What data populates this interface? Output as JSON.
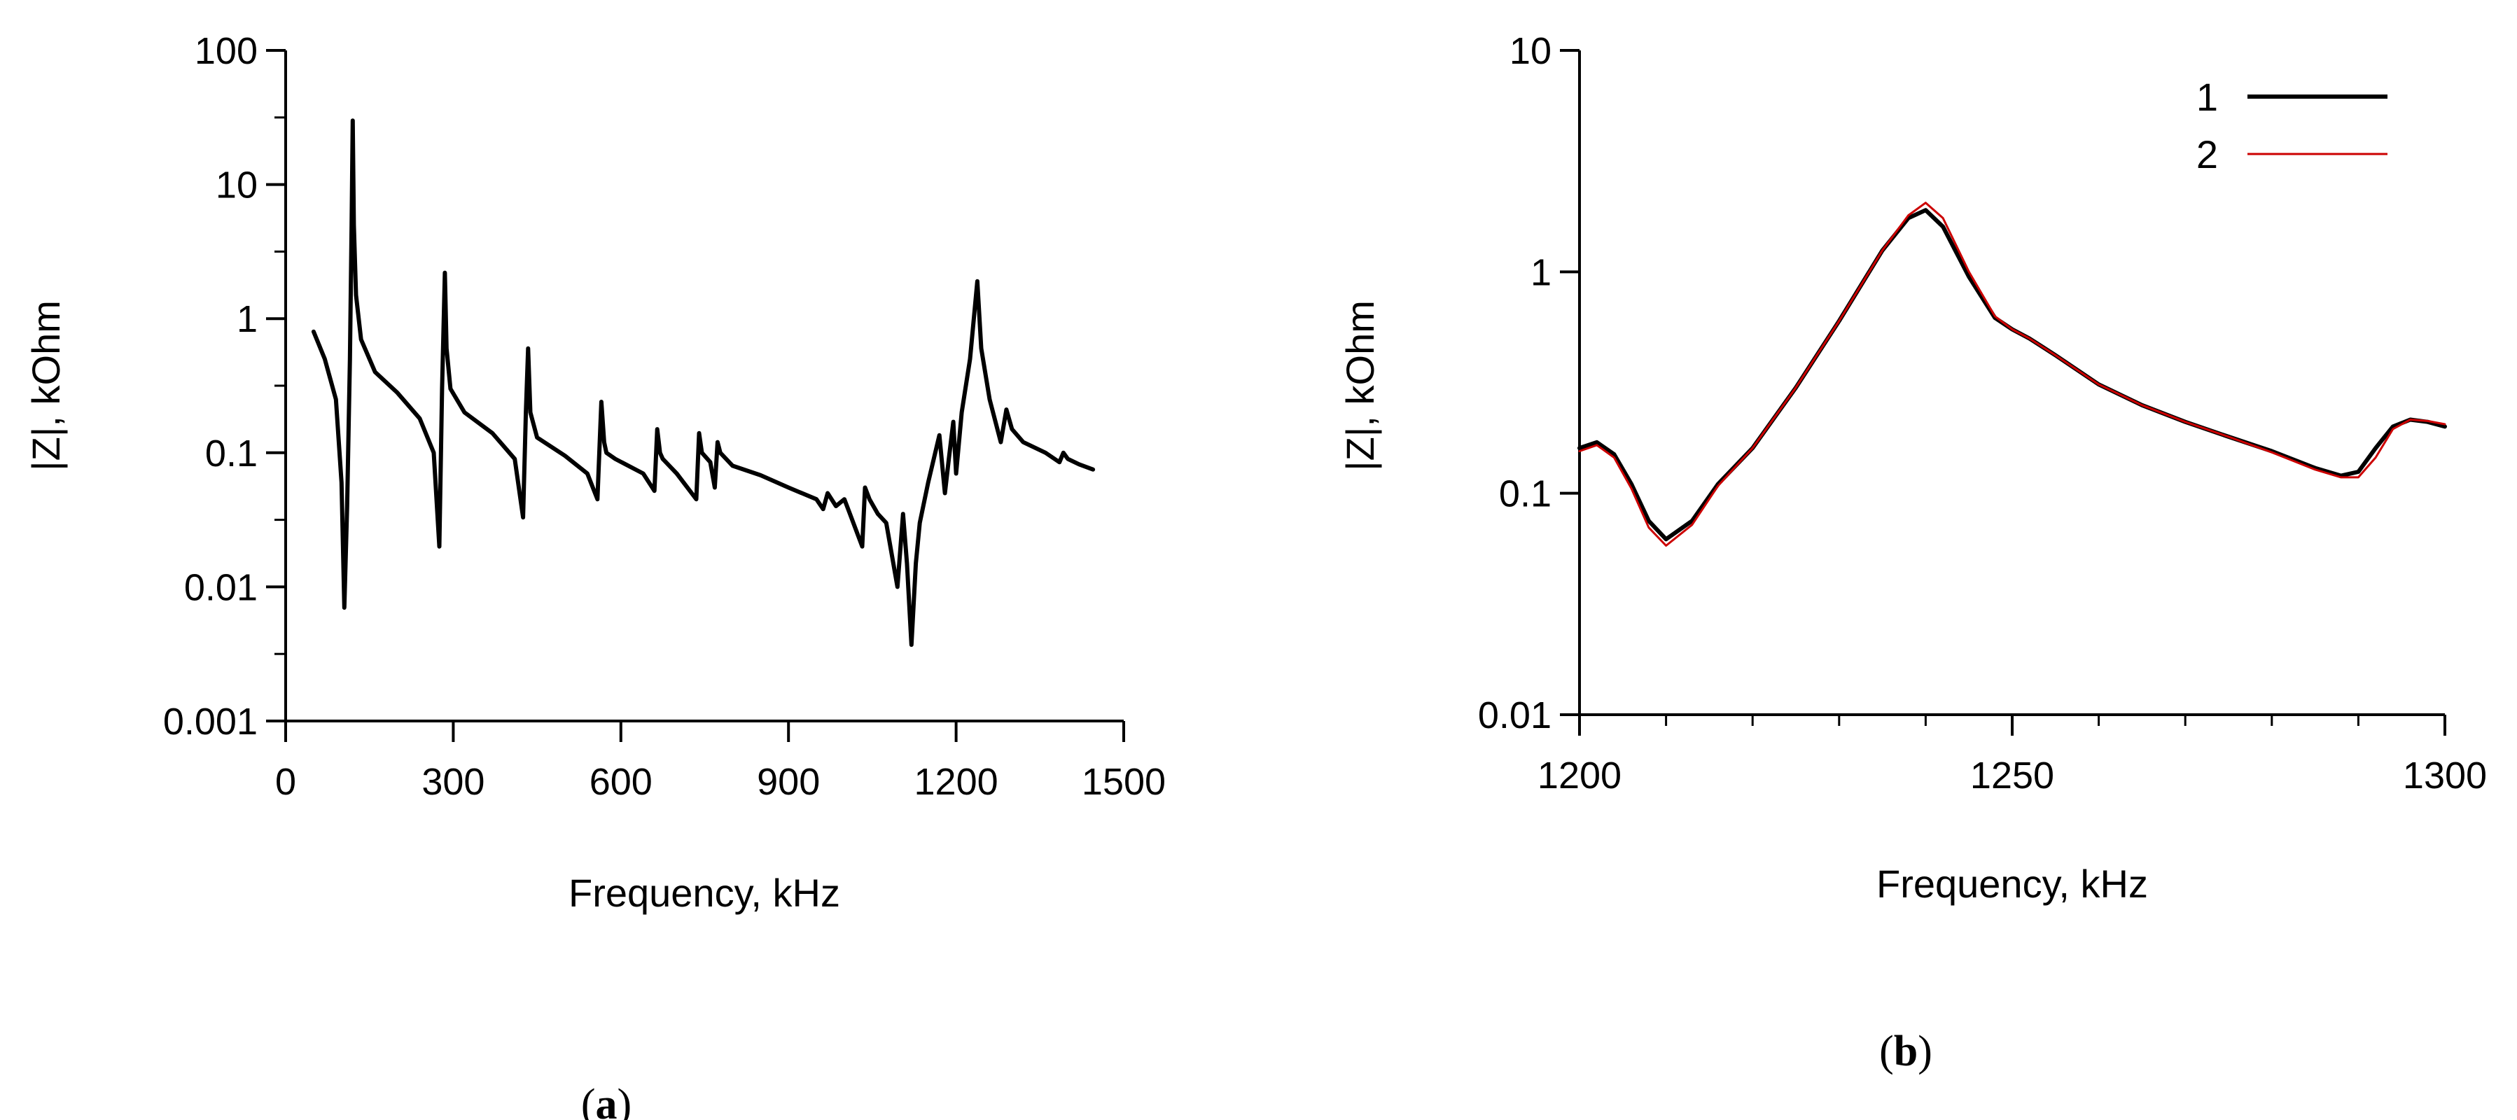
{
  "chart_data": [
    {
      "panel": "a",
      "panel_label": "(a)",
      "type": "line",
      "xlabel": "Frequency, kHz",
      "ylabel": "|Z|, kOhm",
      "xlim": [
        0,
        1500
      ],
      "ylim": [
        0.001,
        100
      ],
      "yscale": "log",
      "xticks": [
        0,
        300,
        600,
        900,
        1200,
        1500
      ],
      "xtick_labels": [
        "0",
        "300",
        "600",
        "900",
        "1200",
        "1500"
      ],
      "yticks": [
        0.001,
        0.01,
        0.1,
        1,
        10,
        100
      ],
      "ytick_labels": [
        "0.001",
        "0.01",
        "0.1",
        "1",
        "10",
        "100"
      ],
      "grid": false,
      "series": [
        {
          "color": "#000000",
          "x": [
            50,
            70,
            90,
            100,
            105,
            110,
            115,
            118,
            120,
            122,
            126,
            135,
            160,
            200,
            240,
            265,
            275,
            280,
            285,
            288,
            295,
            320,
            370,
            410,
            425,
            430,
            434,
            438,
            450,
            500,
            540,
            558,
            565,
            570,
            574,
            590,
            640,
            660,
            665,
            670,
            675,
            700,
            735,
            740,
            745,
            760,
            768,
            773,
            778,
            800,
            850,
            900,
            950,
            962,
            970,
            985,
            1000,
            1010,
            1032,
            1037,
            1045,
            1060,
            1075,
            1095,
            1105,
            1112,
            1120,
            1128,
            1135,
            1150,
            1170,
            1180,
            1187,
            1195,
            1200,
            1210,
            1225,
            1238,
            1245,
            1260,
            1280,
            1290,
            1300,
            1320,
            1360,
            1385,
            1392,
            1400,
            1420,
            1445
          ],
          "y": [
            0.8,
            0.5,
            0.25,
            0.06,
            0.007,
            0.04,
            0.5,
            5,
            30,
            5,
            1.5,
            0.7,
            0.4,
            0.28,
            0.18,
            0.1,
            0.02,
            0.3,
            2.2,
            0.6,
            0.3,
            0.2,
            0.14,
            0.09,
            0.033,
            0.2,
            0.6,
            0.2,
            0.13,
            0.095,
            0.07,
            0.045,
            0.24,
            0.12,
            0.1,
            0.09,
            0.07,
            0.052,
            0.15,
            0.1,
            0.09,
            0.07,
            0.045,
            0.14,
            0.1,
            0.085,
            0.055,
            0.12,
            0.1,
            0.08,
            0.068,
            0.055,
            0.045,
            0.038,
            0.05,
            0.04,
            0.045,
            0.035,
            0.02,
            0.055,
            0.045,
            0.035,
            0.03,
            0.01,
            0.035,
            0.015,
            0.0037,
            0.015,
            0.03,
            0.06,
            0.135,
            0.05,
            0.09,
            0.17,
            0.07,
            0.2,
            0.5,
            1.9,
            0.6,
            0.25,
            0.12,
            0.21,
            0.15,
            0.12,
            0.1,
            0.085,
            0.1,
            0.09,
            0.082,
            0.075
          ]
        }
      ]
    },
    {
      "panel": "b",
      "panel_label": "(b)",
      "type": "line",
      "xlabel": "Frequency, kHz",
      "ylabel": "|Z|, kOhm",
      "xlim": [
        1200,
        1300
      ],
      "ylim": [
        0.01,
        10
      ],
      "yscale": "log",
      "xticks": [
        1200,
        1250,
        1300
      ],
      "xtick_labels": [
        "1200",
        "1250",
        "1300"
      ],
      "xticks_minor": [
        1210,
        1220,
        1230,
        1240,
        1260,
        1270,
        1280,
        1290
      ],
      "yticks": [
        0.01,
        0.1,
        1,
        10
      ],
      "ytick_labels": [
        "0.01",
        "0.1",
        "1",
        "10"
      ],
      "grid": false,
      "legend_position": "top-right",
      "series": [
        {
          "name": "1",
          "color": "#000000",
          "x": [
            1200,
            1202,
            1204,
            1206,
            1208,
            1210,
            1213,
            1216,
            1220,
            1225,
            1230,
            1235,
            1238,
            1240,
            1242,
            1245,
            1248,
            1250,
            1252,
            1255,
            1260,
            1265,
            1270,
            1275,
            1280,
            1285,
            1288,
            1290,
            1292,
            1294,
            1296,
            1298,
            1300
          ],
          "y": [
            0.16,
            0.17,
            0.15,
            0.11,
            0.075,
            0.062,
            0.075,
            0.11,
            0.16,
            0.3,
            0.6,
            1.25,
            1.75,
            1.9,
            1.6,
            0.95,
            0.62,
            0.55,
            0.5,
            0.42,
            0.31,
            0.25,
            0.21,
            0.18,
            0.155,
            0.13,
            0.12,
            0.125,
            0.16,
            0.2,
            0.215,
            0.21,
            0.2
          ]
        },
        {
          "name": "2",
          "color": "#cc0000",
          "x": [
            1200,
            1202,
            1204,
            1206,
            1208,
            1210,
            1213,
            1216,
            1220,
            1225,
            1230,
            1235,
            1238,
            1240,
            1242,
            1245,
            1248,
            1250,
            1252,
            1255,
            1260,
            1265,
            1270,
            1275,
            1280,
            1285,
            1288,
            1290,
            1292,
            1294,
            1296,
            1298,
            1300
          ],
          "y": [
            0.155,
            0.165,
            0.145,
            0.105,
            0.07,
            0.058,
            0.072,
            0.108,
            0.16,
            0.3,
            0.6,
            1.25,
            1.8,
            2.05,
            1.75,
            1.0,
            0.63,
            0.55,
            0.5,
            0.42,
            0.31,
            0.25,
            0.21,
            0.18,
            0.153,
            0.128,
            0.118,
            0.118,
            0.145,
            0.195,
            0.215,
            0.212,
            0.205
          ]
        }
      ]
    }
  ]
}
